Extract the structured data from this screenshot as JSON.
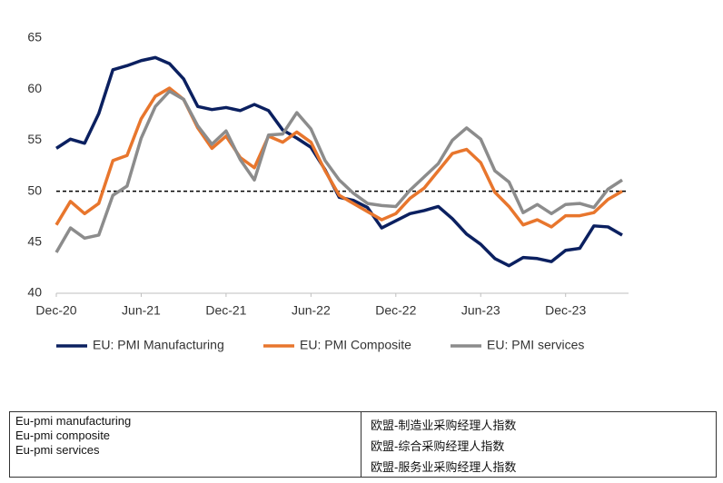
{
  "chart_data": {
    "type": "line",
    "categories": [
      "Dec-20",
      null,
      null,
      null,
      null,
      null,
      "Jun-21",
      null,
      null,
      null,
      null,
      null,
      "Dec-21",
      null,
      null,
      null,
      null,
      null,
      "Jun-22",
      null,
      null,
      null,
      null,
      null,
      "Dec-22",
      null,
      null,
      null,
      null,
      null,
      "Jun-23",
      null,
      null,
      null,
      null,
      null,
      "Dec-23",
      null,
      null,
      null,
      null
    ],
    "series": [
      {
        "name": "EU: PMI Manufacturing",
        "color": "#0b2060",
        "values": [
          54.2,
          55.1,
          54.7,
          57.6,
          61.9,
          62.3,
          62.8,
          63.1,
          62.5,
          61.0,
          58.3,
          58.0,
          58.2,
          57.9,
          58.5,
          57.9,
          56.0,
          55.2,
          54.3,
          52.1,
          49.4,
          49.1,
          48.4,
          46.4,
          47.1,
          47.8,
          48.1,
          48.5,
          47.3,
          45.8,
          44.8,
          43.4,
          42.7,
          43.5,
          43.4,
          43.1,
          44.2,
          44.4,
          46.6,
          46.5,
          45.7
        ]
      },
      {
        "name": "EU: PMI Composite",
        "color": "#e8762d",
        "values": [
          46.7,
          49.0,
          47.8,
          48.8,
          53.0,
          53.5,
          57.1,
          59.3,
          60.1,
          59.0,
          56.2,
          54.2,
          55.4,
          53.3,
          52.3,
          55.4,
          54.8,
          55.8,
          54.8,
          52.0,
          49.6,
          48.8,
          48.0,
          47.2,
          47.8,
          49.3,
          50.3,
          52.0,
          53.7,
          54.1,
          52.8,
          49.9,
          48.5,
          46.7,
          47.2,
          46.5,
          47.6,
          47.6,
          47.9,
          49.2,
          50.0
        ]
      },
      {
        "name": "EU: PMI services",
        "color": "#8c8c8c",
        "values": [
          44.0,
          46.4,
          45.4,
          45.7,
          49.6,
          50.5,
          55.2,
          58.3,
          59.8,
          59.0,
          56.4,
          54.6,
          55.9,
          53.1,
          51.1,
          55.5,
          55.6,
          57.7,
          56.1,
          53.0,
          51.1,
          49.8,
          48.8,
          48.6,
          48.5,
          50.1,
          51.4,
          52.7,
          55.0,
          56.2,
          55.1,
          52.0,
          50.9,
          47.9,
          48.7,
          47.8,
          48.7,
          48.8,
          48.4,
          50.2,
          51.1
        ]
      }
    ],
    "ylim": [
      40,
      65
    ],
    "yticks": [
      40,
      45,
      50,
      55,
      60,
      65
    ],
    "reference_line": 50,
    "legend": "bottom"
  },
  "table": {
    "rows": [
      [
        "Eu-pmi manufacturing",
        "欧盟-制造业采购经理人指数"
      ],
      [
        "Eu-pmi composite",
        "欧盟-综合采购经理人指数"
      ],
      [
        "Eu-pmi services",
        "欧盟-服务业采购经理人指数"
      ]
    ]
  }
}
